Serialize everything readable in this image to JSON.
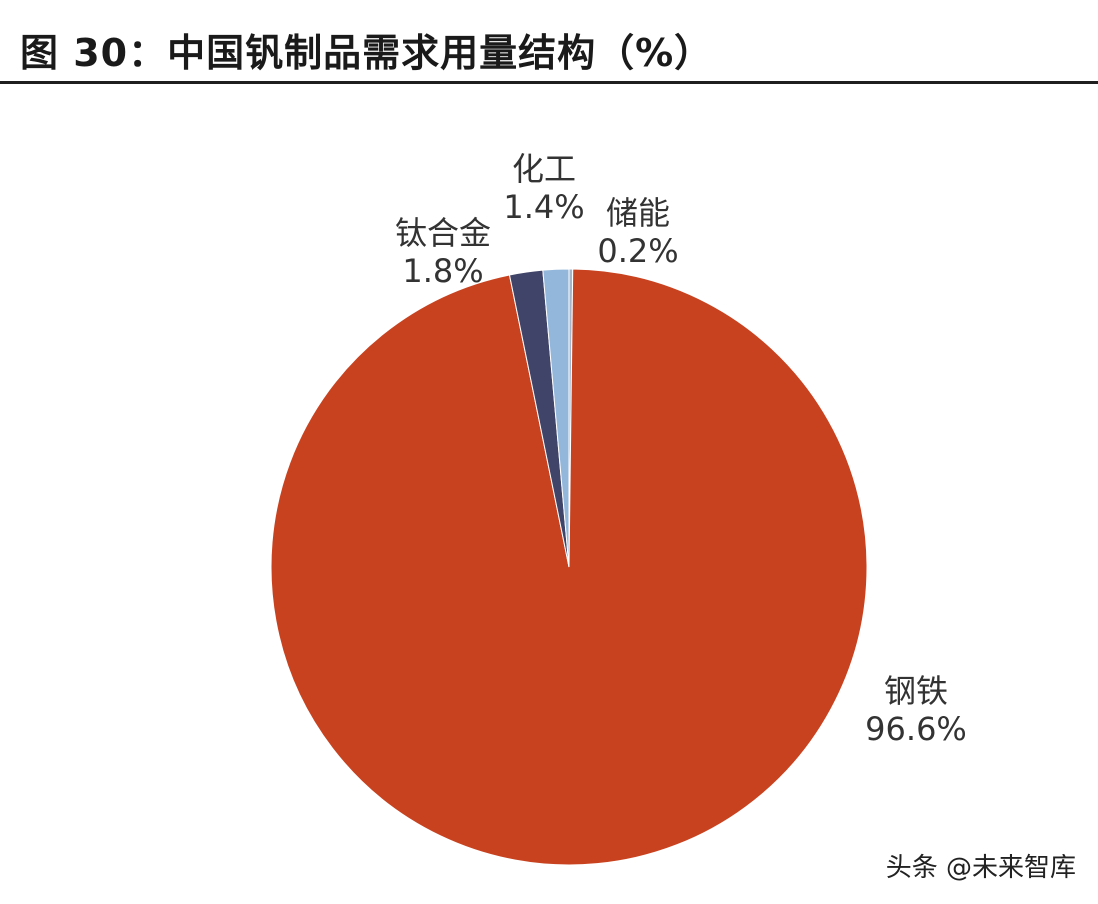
{
  "title": "图 30：中国钒制品需求用量结构（%）",
  "watermark": "头条 @未来智库",
  "chart_data": {
    "type": "pie",
    "start_angle_deg": 0,
    "direction": "clockwise",
    "slices": [
      {
        "name": "储能",
        "value": 0.2,
        "label": "0.2%",
        "color": "#a6b4c8"
      },
      {
        "name": "钢铁",
        "value": 96.6,
        "label": "96.6%",
        "color": "#c8421f"
      },
      {
        "name": "钛合金",
        "value": 1.8,
        "label": "1.8%",
        "color": "#3f4468"
      },
      {
        "name": "化工",
        "value": 1.4,
        "label": "1.4%",
        "color": "#93b7da"
      }
    ]
  }
}
